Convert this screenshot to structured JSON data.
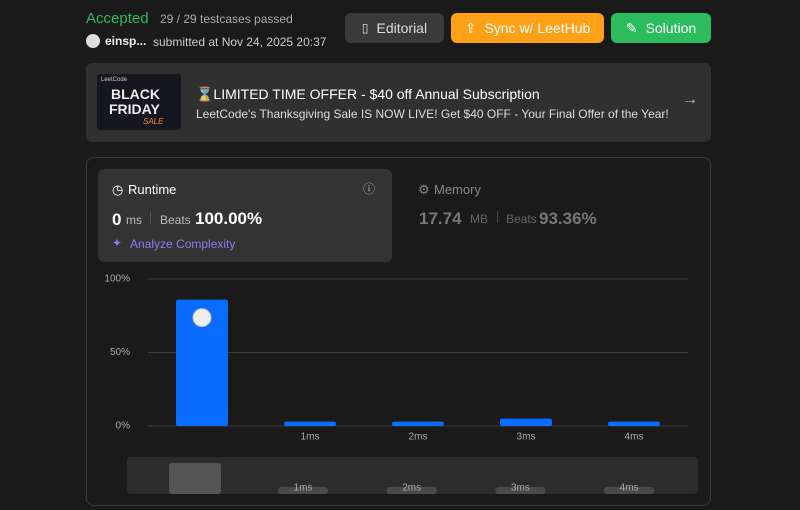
{
  "header": {
    "status": "Accepted",
    "testcases": "29 / 29 testcases passed",
    "user": "einsp...",
    "submitted": "submitted at Nov 24, 2025 20:37"
  },
  "buttons": [
    "Editorial",
    "Sync w/ LeetHub",
    "Solution"
  ],
  "banner": {
    "image_lines": [
      "LeetCode",
      "BLACK",
      "FRIDAY",
      "SALE"
    ],
    "title": "⌛LIMITED TIME OFFER - $40 off Annual Subscription",
    "text": "LeetCode's Thanksgiving Sale IS NOW LIVE! Get $40 OFF - Your Final Offer of the Year!"
  },
  "runtime": {
    "label": "Runtime",
    "value": "0",
    "unit": "ms",
    "beats_label": "Beats",
    "beats": "100.00%",
    "analyze": "Analyze Complexity"
  },
  "memory": {
    "label": "Memory",
    "value": "17.74",
    "unit": "MB",
    "beats_label": "Beats",
    "beats": "93.36%"
  },
  "chart_data": {
    "type": "bar",
    "categories": [
      null,
      "1ms",
      "2ms",
      "3ms",
      "4ms"
    ],
    "values": [
      86,
      3,
      3,
      5,
      3
    ],
    "color": "#0a6cff",
    "ylim": [
      0,
      100
    ],
    "yticks": [
      {
        "value": 0,
        "label": "0%"
      },
      {
        "value": 50,
        "label": "50%"
      },
      {
        "value": 100,
        "label": "100%"
      }
    ],
    "grid": true
  }
}
